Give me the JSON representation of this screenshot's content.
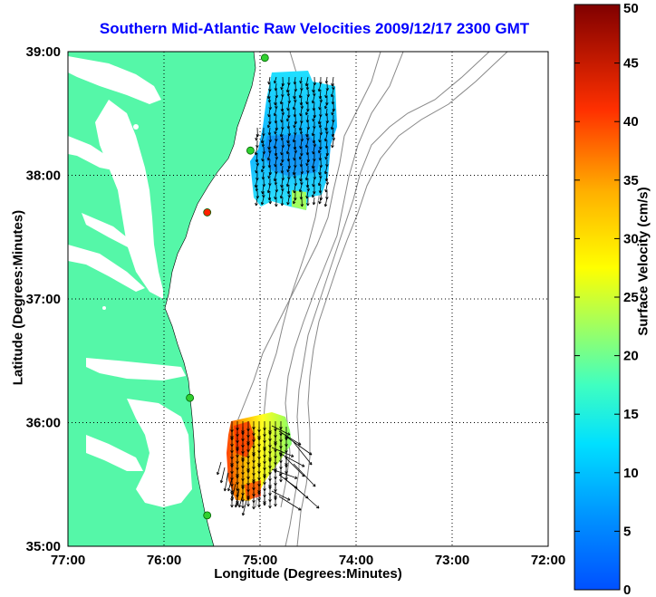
{
  "title": "Southern Mid-Atlantic Raw Velocities 2009/12/17 2300 GMT",
  "xlabel": "Longitude (Degrees:Minutes)",
  "ylabel": "Latitude (Degrees:Minutes)",
  "colorbar": {
    "label": "Surface Velocity (cm/s)",
    "range": [
      0,
      50
    ],
    "ticks": [
      "0",
      "5",
      "10",
      "15",
      "20",
      "25",
      "30",
      "35",
      "40",
      "45",
      "50"
    ]
  },
  "axes": {
    "xticks": [
      "77:00",
      "76:00",
      "75:00",
      "74:00",
      "73:00",
      "72:00"
    ],
    "yticks": [
      "39:00",
      "38:00",
      "37:00",
      "36:00",
      "35:00"
    ],
    "xlim_lon": [
      -77,
      -72
    ],
    "ylim_lat": [
      35,
      39
    ],
    "grid": "dotted"
  },
  "colors": {
    "land": "#55f7a8",
    "title": "#0000ff",
    "bathymetry": "#888888"
  },
  "chart_data": {
    "type": "heatmap",
    "title": "Southern Mid-Atlantic Raw Velocities 2009/12/17 2300 GMT",
    "xlabel": "Longitude (Degrees:Minutes)",
    "ylabel": "Latitude (Degrees:Minutes)",
    "regions": [
      {
        "lon_range": [
          -75.4,
          -74.3
        ],
        "lat_range": [
          37.75,
          38.85
        ],
        "velocity_cm_s": [
          8,
          17
        ]
      },
      {
        "lon_range": [
          -75.6,
          -74.7
        ],
        "lat_range": [
          35.4,
          36.2
        ],
        "velocity_cm_s": [
          20,
          40
        ]
      }
    ],
    "stations": [
      {
        "lat": 38.95,
        "lon": -74.95,
        "color": "green"
      },
      {
        "lat": 38.2,
        "lon": -75.1,
        "color": "green"
      },
      {
        "lat": 37.7,
        "lon": -75.55,
        "color": "red"
      },
      {
        "lat": 36.2,
        "lon": -75.73,
        "color": "green"
      },
      {
        "lat": 35.25,
        "lon": -75.55,
        "color": "green"
      }
    ]
  }
}
